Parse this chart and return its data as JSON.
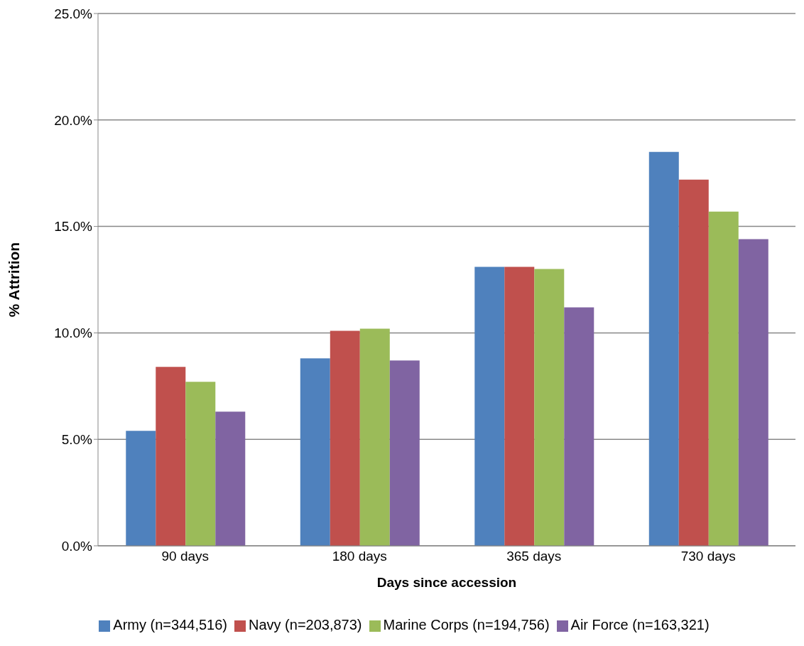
{
  "chart_data": {
    "type": "bar",
    "xlabel": "Days since accession",
    "ylabel": "% Attrition",
    "categories": [
      "90 days",
      "180 days",
      "365 days",
      "730 days"
    ],
    "series": [
      {
        "name": "Army (n=344,516)",
        "color": "#4f81bd",
        "values": [
          5.4,
          8.8,
          13.1,
          18.5
        ]
      },
      {
        "name": "Navy (n=203,873)",
        "color": "#c0504d",
        "values": [
          8.4,
          10.1,
          13.1,
          17.2
        ]
      },
      {
        "name": "Marine Corps (n=194,756)",
        "color": "#9bbb59",
        "values": [
          7.7,
          10.2,
          13.0,
          15.7
        ]
      },
      {
        "name": "Air Force (n=163,321)",
        "color": "#8064a2",
        "values": [
          6.3,
          8.7,
          11.2,
          14.4
        ]
      }
    ],
    "ylim": [
      0,
      25
    ],
    "yticks": [
      {
        "value": 0,
        "label": "0.0%"
      },
      {
        "value": 5,
        "label": "5.0%"
      },
      {
        "value": 10,
        "label": "10.0%"
      },
      {
        "value": 15,
        "label": "15.0%"
      },
      {
        "value": 20,
        "label": "20.0%"
      },
      {
        "value": 25,
        "label": "25.0%"
      }
    ],
    "grid": "y",
    "legend": "bottom"
  }
}
